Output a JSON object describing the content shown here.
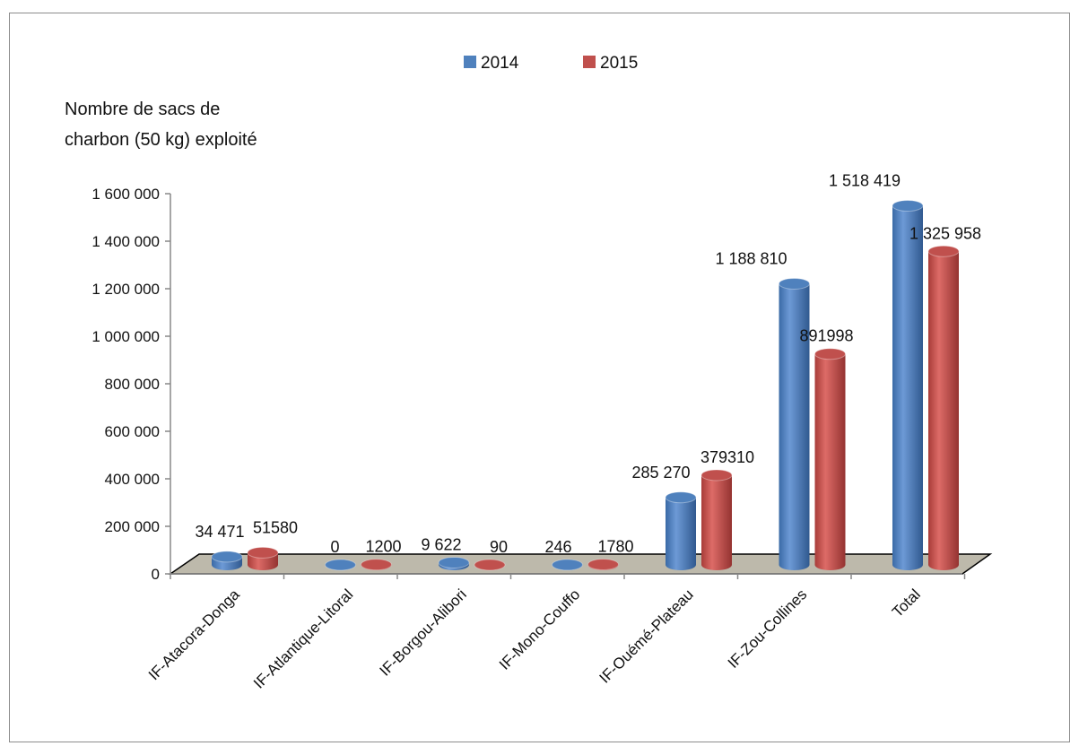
{
  "chart_data": {
    "type": "bar",
    "title": "",
    "ylabel": [
      "Nombre de sacs de",
      "charbon  (50 kg) exploité"
    ],
    "xlabel": "",
    "categories": [
      "IF-Atacora-Donga",
      "IF-Atlantique-Litoral",
      "IF-Borgou-Alibori",
      "IF-Mono-Couffo",
      "IF-Ouémé-Plateau",
      "IF-Zou-Collines",
      "Total"
    ],
    "series": [
      {
        "name": "2014",
        "color": "#4f81bd",
        "values": [
          34471,
          0,
          9622,
          246,
          285270,
          1188810,
          1518419
        ],
        "labels": [
          "34 471",
          "0",
          "9 622",
          "246",
          "285 270",
          "1 188 810",
          "1 518 419"
        ]
      },
      {
        "name": "2015",
        "color": "#c0504d",
        "values": [
          51580,
          1200,
          90,
          1780,
          379310,
          891998,
          1325958
        ],
        "labels": [
          "51580",
          "1200",
          "90",
          "1780",
          "379310",
          "891998",
          "1 325 958"
        ]
      }
    ],
    "ylim": [
      0,
      1600000
    ],
    "yticks": [
      0,
      200000,
      400000,
      600000,
      800000,
      1000000,
      1200000,
      1400000,
      1600000
    ],
    "ytick_labels": [
      "0",
      "200 000",
      "400 000",
      "600 000",
      "800 000",
      "1 000 000",
      "1 200 000",
      "1 400 000",
      "1 600 000"
    ],
    "legend_position": "top-center",
    "grid": false,
    "floor_color": "#bdb9ab"
  }
}
